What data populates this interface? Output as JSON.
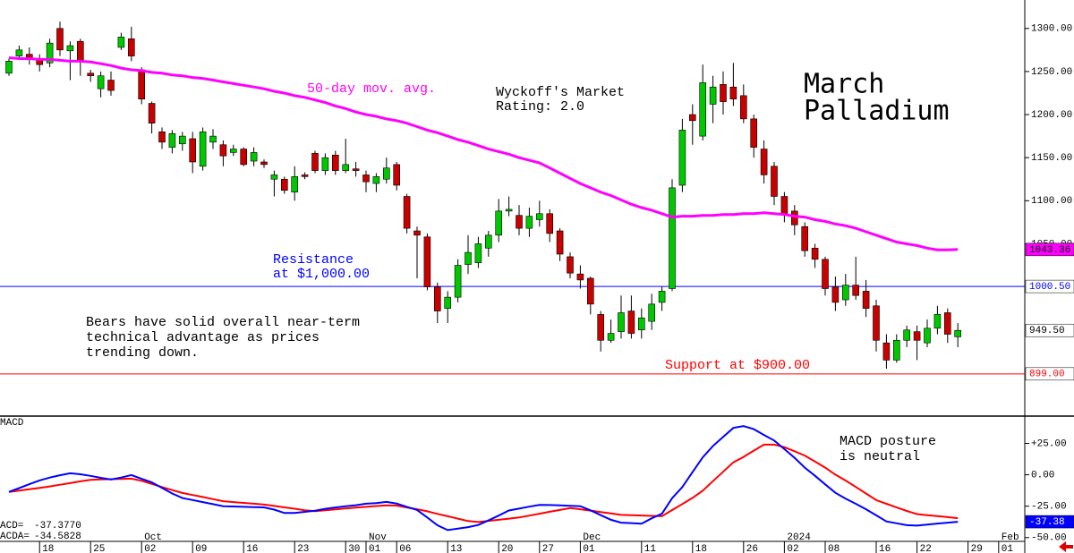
{
  "chart_data": [
    {
      "type": "candlestick",
      "title": [
        "March",
        "Palladium"
      ],
      "categories": [
        null,
        null,
        null,
        "18",
        null,
        null,
        null,
        null,
        "25",
        null,
        null,
        null,
        null,
        "02",
        null,
        null,
        null,
        null,
        "09",
        null,
        null,
        null,
        null,
        "16",
        null,
        null,
        null,
        null,
        "23",
        null,
        null,
        null,
        null,
        "30",
        null,
        "01",
        null,
        null,
        "06",
        null,
        null,
        null,
        null,
        "13",
        null,
        null,
        null,
        null,
        "20",
        null,
        null,
        null,
        "27",
        null,
        null,
        null,
        "01",
        null,
        null,
        null,
        null,
        null,
        "11",
        null,
        null,
        null,
        null,
        "18",
        null,
        null,
        null,
        null,
        "26",
        null,
        null,
        null,
        "02",
        null,
        null,
        null,
        "08",
        null,
        null,
        null,
        null,
        "16",
        null,
        null,
        null,
        "22",
        null,
        null,
        null,
        null,
        "29",
        null,
        null,
        "01"
      ],
      "months": [
        null,
        null,
        null,
        null,
        null,
        null,
        null,
        null,
        null,
        null,
        null,
        null,
        null,
        "Oct",
        null,
        null,
        null,
        null,
        null,
        null,
        null,
        null,
        null,
        null,
        null,
        null,
        null,
        null,
        null,
        null,
        null,
        null,
        null,
        null,
        null,
        "Nov",
        null,
        null,
        null,
        null,
        null,
        null,
        null,
        null,
        null,
        null,
        null,
        null,
        null,
        null,
        null,
        null,
        null,
        null,
        null,
        null,
        "Dec",
        null,
        null,
        null,
        null,
        null,
        null,
        null,
        null,
        null,
        null,
        null,
        null,
        null,
        null,
        null,
        null,
        null,
        null,
        null,
        "2024",
        null,
        null,
        null,
        null,
        null,
        null,
        null,
        null,
        null,
        null,
        null,
        null,
        null,
        null,
        null,
        null,
        null,
        null,
        null,
        null,
        "Feb"
      ],
      "open": [
        1248,
        1268,
        1270,
        1265,
        1260,
        1300,
        1274,
        1285,
        1248,
        1230,
        1240,
        1278,
        1288,
        1252,
        1213,
        1180,
        1162,
        1166,
        1172,
        1140,
        1168,
        1165,
        1156,
        1160,
        1146,
        1145,
        1125,
        1125,
        1110,
        1130,
        1155,
        1135,
        1153,
        1135,
        1137,
        1130,
        1120,
        1125,
        1142,
        1105,
        1065,
        1058,
        1000,
        975,
        988,
        1026,
        1028,
        1045,
        1060,
        1088,
        1083,
        1068,
        1078,
        1085,
        1065,
        1035,
        1015,
        1010,
        968,
        938,
        948,
        972,
        950,
        960,
        982,
        998,
        1118,
        1200,
        1175,
        1212,
        1235,
        1232,
        1222,
        1195,
        1160,
        1140,
        1105,
        1088,
        1070,
        1045,
        1032,
        1000,
        985,
        1002,
        995,
        978,
        935,
        915,
        938,
        948,
        935,
        952,
        970,
        942,
        null,
        null,
        null,
        null
      ],
      "high": [
        1265,
        1280,
        1278,
        1270,
        1288,
        1308,
        1285,
        1288,
        1252,
        1250,
        1250,
        1295,
        1302,
        1255,
        1215,
        1185,
        1182,
        1180,
        1180,
        1185,
        1183,
        1170,
        1165,
        1162,
        1162,
        1148,
        1135,
        1128,
        1140,
        1133,
        1158,
        1155,
        1158,
        1172,
        1145,
        1135,
        1132,
        1150,
        1145,
        1108,
        1070,
        1062,
        1005,
        995,
        1032,
        1060,
        1058,
        1065,
        1102,
        1105,
        1095,
        1092,
        1100,
        1090,
        1068,
        1040,
        1025,
        1012,
        972,
        962,
        990,
        990,
        975,
        992,
        1000,
        1125,
        1195,
        1212,
        1258,
        1245,
        1250,
        1260,
        1235,
        1200,
        1170,
        1145,
        1110,
        1095,
        1075,
        1050,
        1035,
        1012,
        1015,
        1035,
        1008,
        985,
        945,
        945,
        955,
        955,
        962,
        978,
        975,
        958,
        null,
        null,
        null,
        null
      ],
      "low": [
        1245,
        1265,
        1258,
        1250,
        1255,
        1268,
        1240,
        1245,
        1238,
        1220,
        1222,
        1275,
        1262,
        1212,
        1178,
        1160,
        1155,
        1158,
        1132,
        1135,
        1160,
        1140,
        1152,
        1140,
        1140,
        1138,
        1105,
        1108,
        1100,
        1125,
        1132,
        1130,
        1130,
        1132,
        1128,
        1110,
        1110,
        1120,
        1112,
        1062,
        1010,
        996,
        958,
        958,
        982,
        1015,
        1022,
        1035,
        1052,
        1082,
        1060,
        1058,
        1070,
        1052,
        1030,
        1010,
        998,
        968,
        925,
        935,
        940,
        940,
        940,
        950,
        972,
        995,
        1110,
        1165,
        1170,
        1190,
        1200,
        1210,
        1190,
        1150,
        1120,
        1095,
        1075,
        1060,
        1035,
        1022,
        990,
        972,
        978,
        985,
        965,
        925,
        905,
        912,
        930,
        915,
        930,
        945,
        935,
        930,
        null,
        null,
        null,
        null
      ],
      "close": [
        1262,
        1275,
        1265,
        1258,
        1283,
        1275,
        1280,
        1262,
        1245,
        1245,
        1228,
        1290,
        1268,
        1218,
        1190,
        1168,
        1178,
        1175,
        1145,
        1180,
        1175,
        1152,
        1160,
        1142,
        1156,
        1142,
        1130,
        1112,
        1128,
        1128,
        1135,
        1150,
        1135,
        1142,
        1135,
        1122,
        1128,
        1138,
        1118,
        1068,
        1060,
        1000,
        972,
        988,
        1025,
        1040,
        1050,
        1060,
        1088,
        1090,
        1068,
        1082,
        1085,
        1062,
        1038,
        1016,
        1008,
        980,
        938,
        946,
        970,
        946,
        964,
        980,
        995,
        1115,
        1182,
        1193,
        1237,
        1232,
        1215,
        1218,
        1195,
        1162,
        1130,
        1105,
        1085,
        1072,
        1042,
        1032,
        998,
        982,
        1002,
        990,
        975,
        938,
        915,
        938,
        950,
        938,
        952,
        968,
        945,
        949.5,
        null,
        null,
        null,
        null
      ],
      "up_color": "#00c800",
      "down_color": "#c80000",
      "ma": {
        "name": "50-day mov. avg.",
        "color": "#ff00ff",
        "values": [
          1266,
          1265,
          1265,
          1264,
          1264,
          1263,
          1262,
          1262,
          1261,
          1259,
          1257,
          1254,
          1252,
          1251,
          1249,
          1248,
          1246,
          1245,
          1243,
          1242,
          1240,
          1238,
          1236,
          1234,
          1232,
          1230,
          1227,
          1225,
          1222,
          1220,
          1217,
          1214,
          1210,
          1207,
          1203,
          1200,
          1198,
          1195,
          1193,
          1190,
          1186,
          1182,
          1179,
          1175,
          1171,
          1168,
          1164,
          1160,
          1157,
          1154,
          1150,
          1147,
          1144,
          1138,
          1132,
          1126,
          1120,
          1115,
          1110,
          1106,
          1101,
          1096,
          1092,
          1089,
          1085,
          1081,
          1082,
          1082,
          1083,
          1083,
          1084,
          1084,
          1085,
          1085,
          1086,
          1085,
          1084,
          1082,
          1081,
          1078,
          1076,
          1073,
          1071,
          1068,
          1064,
          1060,
          1056,
          1052,
          1050,
          1048,
          1045,
          1043,
          1043,
          1043.36,
          null,
          null,
          null,
          null
        ]
      },
      "ylim": [
        850,
        1333
      ],
      "yticks": [
        {
          "value": 1050,
          "label": "1050.00"
        },
        {
          "value": 1100,
          "label": "1100.00"
        },
        {
          "value": 1150,
          "label": "1150.00"
        },
        {
          "value": 1200,
          "label": "1200.00"
        },
        {
          "value": 1250,
          "label": "1250.00"
        },
        {
          "value": 1300,
          "label": "1300.00"
        }
      ],
      "hlines": [
        {
          "value": 1000.5,
          "label": "1000.50",
          "color": "#0000ff"
        },
        {
          "value": 899,
          "label": "899.00",
          "color": "#ff0000"
        }
      ],
      "last_close_label": "949.50",
      "annotations": {
        "rating": [
          "Wyckoff's Market",
          "Rating: 2.0"
        ],
        "resistance": [
          "Resistance",
          "at $1,000.00"
        ],
        "support": "Support at $900.00",
        "comment": [
          "Bears have solid overall near-term",
          "technical advantage as prices",
          "trending down."
        ]
      }
    },
    {
      "type": "line",
      "title": "MACD",
      "series": [
        {
          "color": "#0000ff",
          "values": [
            -13.6,
            -10.6,
            -7.5,
            -4.5,
            -2.2,
            -0.4,
            1.2,
            0.4,
            -0.9,
            -2.4,
            -3.8,
            -2.2,
            -0.2,
            -3.2,
            -6,
            -10.4,
            -14.9,
            -18.5,
            -20.1,
            -21.7,
            -23.4,
            -25,
            -25.2,
            -25.5,
            -25.7,
            -25.9,
            -27.7,
            -30.4,
            -30.4,
            -29.5,
            -28.6,
            -27.1,
            -26,
            -25,
            -24.2,
            -23,
            -22.5,
            -21.6,
            -22.9,
            -25.5,
            -28,
            -34,
            -40.2,
            -44,
            -42.8,
            -41.7,
            -40,
            -36.3,
            -32.5,
            -28.4,
            -26.9,
            -25.4,
            -24,
            -24.1,
            -24.4,
            -24.7,
            -25,
            -28.3,
            -32.1,
            -35.8,
            -38.1,
            -38.5,
            -38.9,
            -34.6,
            -31,
            -18.6,
            -9.8,
            2.1,
            13.9,
            22.9,
            30.1,
            37.3,
            38.7,
            36.3,
            31.7,
            27.3,
            20.4,
            13.5,
            5.7,
            -0.8,
            -7.6,
            -14.3,
            -19,
            -23.1,
            -27.4,
            -32.3,
            -37.1,
            -38.6,
            -40.1,
            -40.5,
            -39.7,
            -38.8,
            -38.1,
            -37.377,
            null,
            null,
            null,
            null
          ]
        },
        {
          "color": "#ff0000",
          "values": [
            -13.6,
            -12.6,
            -11.5,
            -10.5,
            -9.3,
            -7.9,
            -6.6,
            -5.2,
            -4,
            -3.7,
            -3.5,
            -3.3,
            -3.1,
            -4.8,
            -7.3,
            -9.8,
            -12.2,
            -14.5,
            -16.1,
            -17.7,
            -19.4,
            -21,
            -21.7,
            -22.4,
            -23,
            -23.7,
            -24.8,
            -25.9,
            -27,
            -28.2,
            -28.9,
            -28.2,
            -27.5,
            -26.8,
            -26.1,
            -25.5,
            -24.9,
            -24.4,
            -24.5,
            -26,
            -27.4,
            -29.1,
            -31.1,
            -33,
            -34.9,
            -36.8,
            -37.6,
            -36.7,
            -35.8,
            -34.9,
            -34,
            -32.5,
            -31,
            -29.4,
            -28,
            -26.5,
            -27.4,
            -28.5,
            -29.7,
            -30.8,
            -31.9,
            -32.1,
            -32.4,
            -32.7,
            -33,
            -28.1,
            -23.3,
            -18.4,
            -12.6,
            -5.1,
            2.4,
            9.9,
            14.2,
            19.2,
            24,
            24,
            22,
            18.7,
            15.3,
            10.6,
            5.7,
            0.1,
            -4.6,
            -9.7,
            -14.9,
            -20.2,
            -23.1,
            -26,
            -28.8,
            -31.3,
            -32.1,
            -32.9,
            -33.7,
            -34.5828,
            null,
            null,
            null,
            null
          ]
        }
      ],
      "ylim": [
        -53,
        46
      ],
      "yticks": [
        {
          "value": 25,
          "label": "+25.00"
        },
        {
          "value": 0,
          "label": "0.00"
        },
        {
          "value": -25,
          "label": "-25.00"
        },
        {
          "value": -50,
          "label": "-50.00"
        }
      ],
      "last_label": "-37.38",
      "readouts": [
        {
          "label": "ACD=",
          "text": "-37.3770"
        },
        {
          "label": "ACDA=",
          "text": "-34.5828"
        }
      ],
      "annotation": [
        "MACD posture",
        "is neutral"
      ]
    }
  ]
}
